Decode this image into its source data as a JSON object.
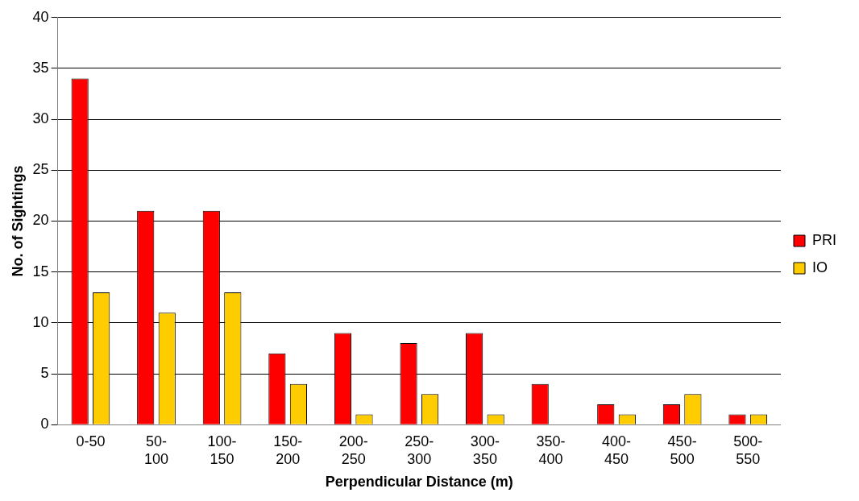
{
  "chart_data": {
    "type": "bar",
    "xlabel": "Perpendicular Distance (m)",
    "ylabel": "No. of Sightings",
    "categories": [
      "0-50",
      "50-100",
      "100-150",
      "150-200",
      "200-250",
      "250-300",
      "300-350",
      "350-400",
      "400-450",
      "450-500",
      "500-550"
    ],
    "series": [
      {
        "name": "PRI",
        "color": "#ff0000",
        "values": [
          34,
          21,
          21,
          7,
          9,
          8,
          9,
          4,
          2,
          2,
          1
        ]
      },
      {
        "name": "IO",
        "color": "#ffcc00",
        "values": [
          13,
          11,
          13,
          4,
          1,
          3,
          1,
          0,
          1,
          3,
          1
        ]
      }
    ],
    "ylim": [
      0,
      40
    ],
    "yticks": [
      0,
      5,
      10,
      15,
      20,
      25,
      30,
      35,
      40
    ],
    "grid": "y",
    "legend": "right"
  }
}
